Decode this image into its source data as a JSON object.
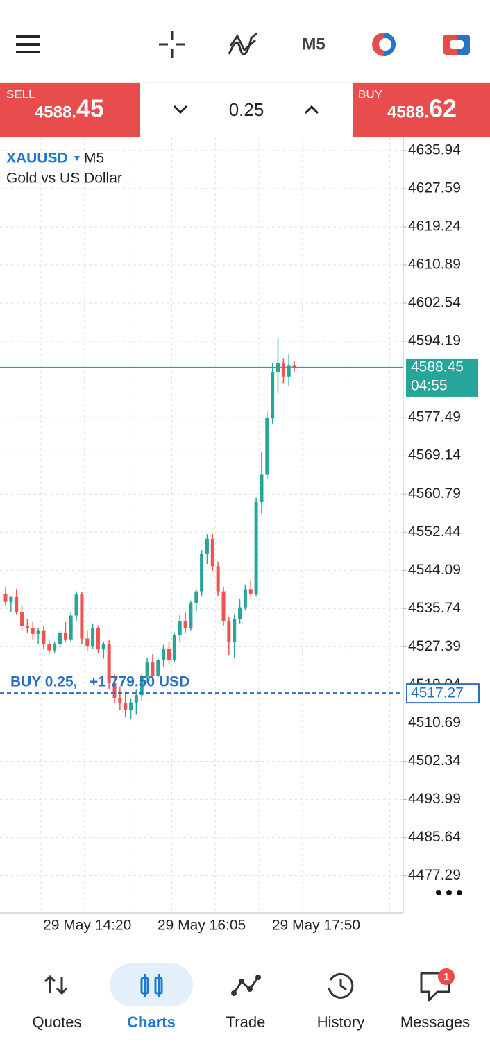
{
  "toolbar": {
    "timeframe": "M5"
  },
  "trade_panel": {
    "sell": {
      "label": "SELL",
      "price_main": "4588.",
      "price_big": "45"
    },
    "volume": "0.25",
    "buy": {
      "label": "BUY",
      "price_main": "4588.",
      "price_big": "62"
    }
  },
  "chart_data": {
    "type": "candlestick",
    "symbol": "XAUUSD",
    "timeframe": "M5",
    "description": "Gold vs US Dollar",
    "categories": [
      null,
      null,
      null,
      null,
      null,
      null,
      null,
      null,
      null,
      null,
      null,
      null,
      null,
      null,
      null,
      "29 May 14:20",
      null,
      null,
      null,
      null,
      null,
      null,
      null,
      null,
      null,
      null,
      null,
      null,
      null,
      null,
      null,
      null,
      null,
      null,
      null,
      null,
      "29 May 16:05",
      null,
      null,
      null,
      null,
      null,
      null,
      null,
      null,
      null,
      null,
      null,
      null,
      null,
      null,
      null,
      null,
      null,
      null,
      null,
      null,
      "29 May 17:50"
    ],
    "open": [
      4539.0,
      4537.2,
      4538.3,
      4535.0,
      4532.0,
      4531.5,
      4530.2,
      4531.0,
      4528.0,
      4526.6,
      4528.0,
      4530.5,
      4529.0,
      4534.2,
      4538.8,
      4529.2,
      4527.5,
      4531.5,
      4526.8,
      4528.0,
      4519.5,
      4516.2,
      4515.0,
      4513.5,
      4515.2,
      4516.8,
      4520.8,
      4524.0,
      4521.0,
      4524.5,
      4527.0,
      4524.5,
      4530.0,
      4533.0,
      4531.5,
      4537.0,
      4539.5,
      4547.8,
      4551.0,
      4545.0,
      4539.5,
      4533.0,
      4528.5,
      4533.5,
      4536.0,
      4540.0,
      4539.0,
      4559.0,
      4565.0,
      4577.5,
      4587.5,
      4589.5,
      4586.5,
      4589.0,
      null,
      null,
      null,
      null
    ],
    "high": [
      4540.5,
      4538.5,
      4540.0,
      4536.5,
      4533.5,
      4532.8,
      4531.5,
      4532.0,
      4529.0,
      4528.5,
      4531.0,
      4532.8,
      4535.0,
      4539.5,
      4539.3,
      4531.0,
      4532.5,
      4532.0,
      4528.5,
      4528.8,
      4521.5,
      4518.5,
      4517.5,
      4516.0,
      4518.0,
      4521.5,
      4525.0,
      4525.8,
      4525.0,
      4527.8,
      4528.5,
      4530.5,
      4534.5,
      4535.0,
      4537.5,
      4540.0,
      4548.5,
      4552.0,
      4552.0,
      4546.0,
      4540.5,
      4534.0,
      4534.5,
      4537.8,
      4541.0,
      4542.0,
      4560.0,
      4570.0,
      4579.0,
      4589.5,
      4595.0,
      4590.5,
      4591.5,
      4589.8,
      null,
      null,
      null,
      null
    ],
    "low": [
      4536.5,
      4535.0,
      4534.5,
      4531.0,
      4530.5,
      4529.0,
      4528.0,
      4527.0,
      4525.8,
      4526.0,
      4527.2,
      4528.5,
      4528.5,
      4533.0,
      4528.0,
      4526.5,
      4527.0,
      4526.0,
      4524.8,
      4518.0,
      4515.0,
      4513.5,
      4512.0,
      4511.5,
      4512.5,
      4515.5,
      4519.5,
      4519.8,
      4520.5,
      4523.0,
      4523.5,
      4524.0,
      4528.5,
      4530.5,
      4531.0,
      4535.0,
      4538.5,
      4545.5,
      4544.0,
      4538.5,
      4532.0,
      4525.5,
      4525.0,
      4532.5,
      4535.5,
      4538.5,
      4538.5,
      4556.5,
      4564.0,
      4576.0,
      4583.0,
      4585.0,
      4584.5,
      4587.5,
      null,
      null,
      null,
      null
    ],
    "close": [
      4537.2,
      4538.3,
      4535.0,
      4532.0,
      4531.5,
      4530.2,
      4531.0,
      4528.0,
      4526.6,
      4528.0,
      4530.5,
      4529.0,
      4534.2,
      4538.8,
      4529.2,
      4527.5,
      4531.5,
      4526.8,
      4528.0,
      4519.5,
      4516.2,
      4515.0,
      4513.5,
      4515.2,
      4516.8,
      4520.8,
      4524.0,
      4521.0,
      4524.5,
      4527.0,
      4524.5,
      4530.0,
      4533.0,
      4531.5,
      4537.0,
      4539.5,
      4547.8,
      4551.0,
      4545.0,
      4539.5,
      4533.0,
      4528.5,
      4533.5,
      4536.0,
      4540.0,
      4539.0,
      4559.0,
      4565.0,
      4577.5,
      4587.5,
      4589.5,
      4586.5,
      4589.0,
      4588.45,
      null,
      null,
      null,
      null
    ],
    "up_color": "#26a69a",
    "down_color": "#ef5350",
    "ylim": [
      4469.2,
      4638.8
    ],
    "yticks": [
      4635.94,
      4627.59,
      4619.24,
      4610.89,
      4602.54,
      4594.19,
      4577.49,
      4569.14,
      4560.79,
      4552.44,
      4544.09,
      4535.74,
      4527.39,
      4519.04,
      4510.69,
      4502.34,
      4493.99,
      4485.64,
      4477.29
    ],
    "grid": true,
    "current_price": 4588.45,
    "current_price_color": "#26a69a",
    "timer": "04:55",
    "position": {
      "label": "BUY 0.25,   +1 779.50 USD",
      "price": 4517.27,
      "color": "#2a6fc0"
    }
  },
  "nav": {
    "items": [
      "Quotes",
      "Charts",
      "Trade",
      "History",
      "Messages"
    ],
    "badge": "1"
  }
}
